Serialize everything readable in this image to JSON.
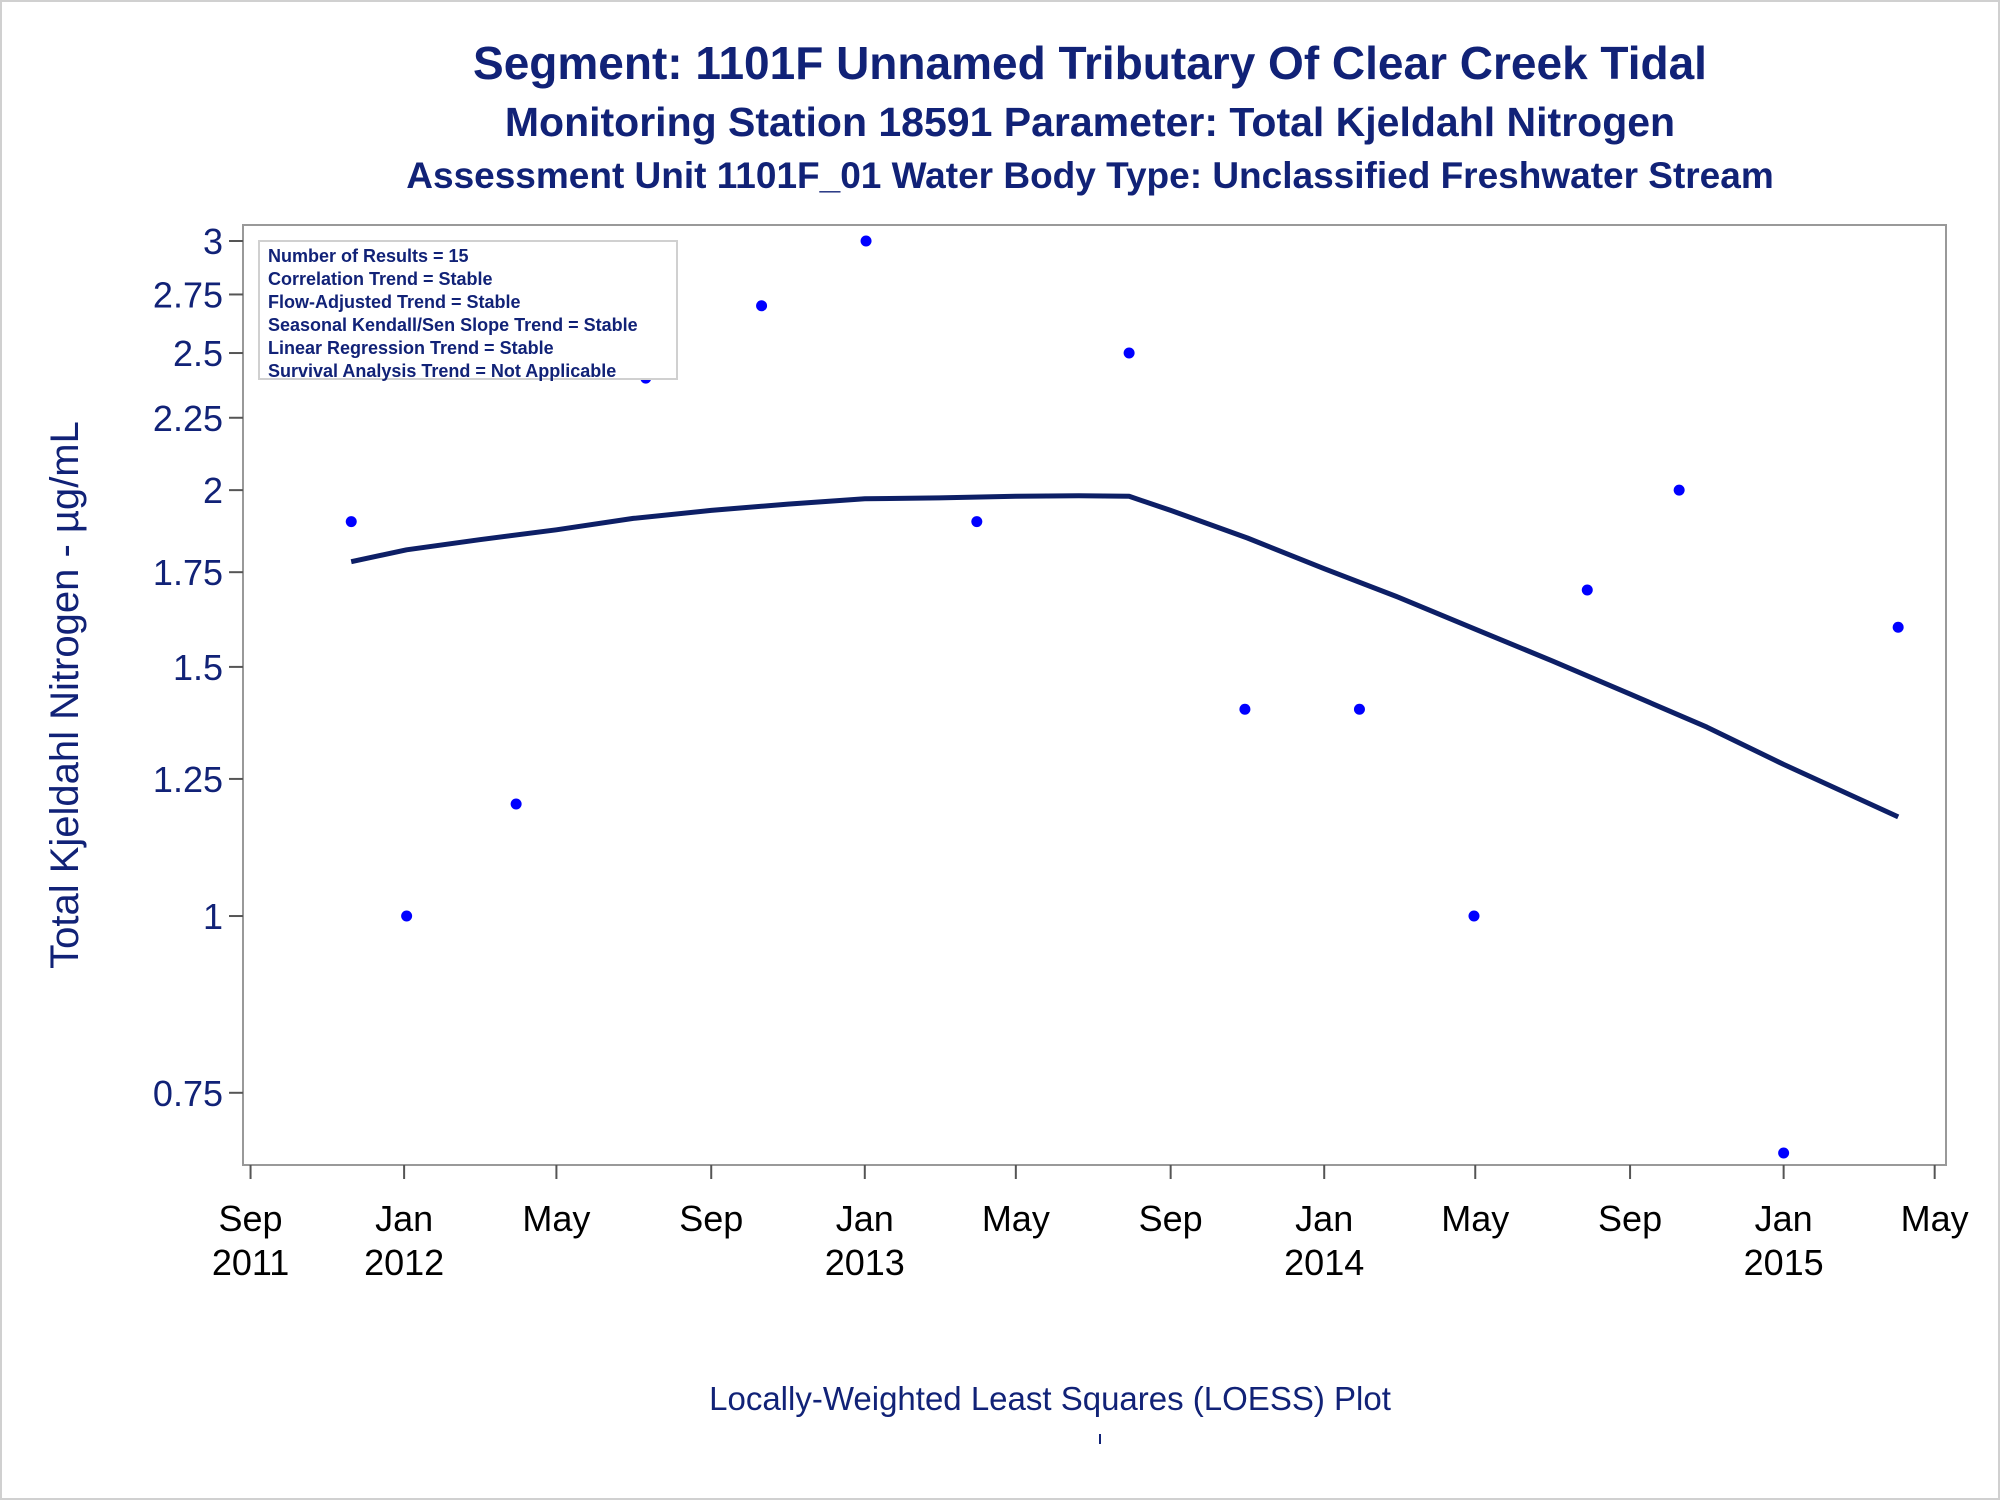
{
  "title": "Segment: 1101F  Unnamed Tributary Of Clear Creek Tidal",
  "subtitle": "Monitoring Station 18591 Parameter: Total Kjeldahl Nitrogen",
  "subtitle2": "Assessment Unit 1101F_01   Water Body Type: Unclassified Freshwater Stream",
  "footnote": "Locally-Weighted Least Squares (LOESS) Plot",
  "legend_lines": [
    "Number of Results = 15",
    "Correlation Trend = Stable",
    "Flow-Adjusted Trend = Stable",
    "Seasonal Kendall/Sen Slope Trend = Stable",
    "Linear Regression Trend = Stable",
    "Survival Analysis Trend = Not Applicable"
  ],
  "colors": {
    "text": "#112277",
    "points": "#0000ff",
    "line": "#0d1f66",
    "axis": "#999999"
  },
  "chart_data": {
    "type": "scatter",
    "ylabel": "Total Kjeldahl Nitrogen -  µg/mL",
    "xlabel": "",
    "yscale": "log",
    "ylim": [
      0.68,
      3.0
    ],
    "xlim": [
      "2011-08-26",
      "2015-05-10"
    ],
    "y_ticks": [
      0.75,
      1,
      1.25,
      1.5,
      1.75,
      2,
      2.25,
      2.5,
      2.75,
      3
    ],
    "y_tick_labels": [
      "0.75",
      "1",
      "1.25",
      "1.5",
      "1.75",
      "2",
      "2.25",
      "2.5",
      "2.75",
      "3"
    ],
    "x_ticks": [
      {
        "date": "2011-09-01",
        "label1": "Sep",
        "label2": "2011"
      },
      {
        "date": "2012-01-01",
        "label1": "Jan",
        "label2": "2012"
      },
      {
        "date": "2012-05-01",
        "label1": "May",
        "label2": ""
      },
      {
        "date": "2012-09-01",
        "label1": "Sep",
        "label2": ""
      },
      {
        "date": "2013-01-01",
        "label1": "Jan",
        "label2": "2013"
      },
      {
        "date": "2013-05-01",
        "label1": "May",
        "label2": ""
      },
      {
        "date": "2013-09-01",
        "label1": "Sep",
        "label2": ""
      },
      {
        "date": "2014-01-01",
        "label1": "Jan",
        "label2": "2014"
      },
      {
        "date": "2014-05-01",
        "label1": "May",
        "label2": ""
      },
      {
        "date": "2014-09-01",
        "label1": "Sep",
        "label2": ""
      },
      {
        "date": "2015-01-01",
        "label1": "Jan",
        "label2": "2015"
      },
      {
        "date": "2015-05-01",
        "label1": "May",
        "label2": ""
      }
    ],
    "series": [
      {
        "type": "scatter",
        "points": [
          {
            "x": "2011-11-20",
            "y": 1.9
          },
          {
            "x": "2012-01-03",
            "y": 1.0
          },
          {
            "x": "2012-03-30",
            "y": 1.2
          },
          {
            "x": "2012-07-11",
            "y": 2.4
          },
          {
            "x": "2012-10-11",
            "y": 2.7
          },
          {
            "x": "2013-01-02",
            "y": 3.0
          },
          {
            "x": "2013-03-31",
            "y": 1.9
          },
          {
            "x": "2013-07-30",
            "y": 2.5
          },
          {
            "x": "2013-10-30",
            "y": 1.4
          },
          {
            "x": "2014-01-29",
            "y": 1.4
          },
          {
            "x": "2014-04-30",
            "y": 1.0
          },
          {
            "x": "2014-07-29",
            "y": 1.7
          },
          {
            "x": "2014-10-10",
            "y": 2.0
          },
          {
            "x": "2015-01-01",
            "y": 0.68
          },
          {
            "x": "2015-04-02",
            "y": 1.6
          }
        ]
      },
      {
        "type": "line",
        "points": [
          {
            "x": "2011-11-20",
            "y": 1.78
          },
          {
            "x": "2012-01-03",
            "y": 1.815
          },
          {
            "x": "2012-03-01",
            "y": 1.845
          },
          {
            "x": "2012-05-01",
            "y": 1.875
          },
          {
            "x": "2012-07-01",
            "y": 1.91
          },
          {
            "x": "2012-09-01",
            "y": 1.935
          },
          {
            "x": "2012-11-01",
            "y": 1.955
          },
          {
            "x": "2013-01-01",
            "y": 1.972
          },
          {
            "x": "2013-03-01",
            "y": 1.975
          },
          {
            "x": "2013-05-01",
            "y": 1.98
          },
          {
            "x": "2013-06-20",
            "y": 1.982
          },
          {
            "x": "2013-07-30",
            "y": 1.98
          },
          {
            "x": "2013-09-01",
            "y": 1.935
          },
          {
            "x": "2013-11-01",
            "y": 1.85
          },
          {
            "x": "2014-01-01",
            "y": 1.76
          },
          {
            "x": "2014-03-01",
            "y": 1.68
          },
          {
            "x": "2014-05-01",
            "y": 1.595
          },
          {
            "x": "2014-07-01",
            "y": 1.515
          },
          {
            "x": "2014-09-01",
            "y": 1.435
          },
          {
            "x": "2014-11-01",
            "y": 1.36
          },
          {
            "x": "2015-01-01",
            "y": 1.28
          },
          {
            "x": "2015-04-02",
            "y": 1.175
          }
        ]
      }
    ]
  }
}
